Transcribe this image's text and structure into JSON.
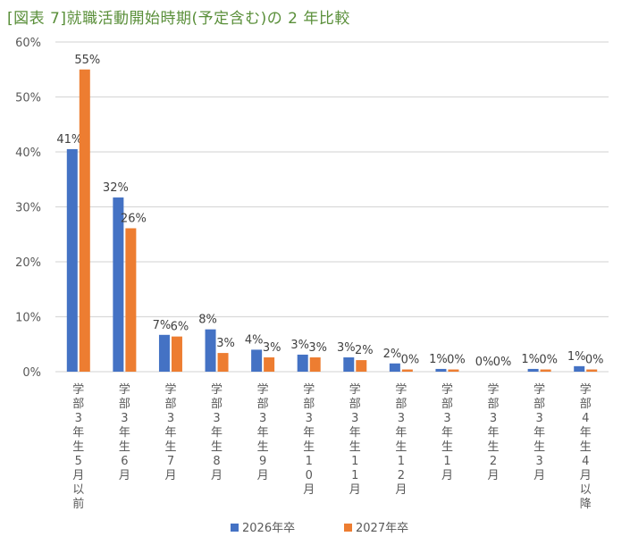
{
  "chart_data": {
    "type": "bar",
    "title": "[図表 7]就職活動開始時期(予定含む)の 2 年比較",
    "categories": [
      "学部3年生5月以前",
      "学部3年生6月",
      "学部3年生7月",
      "学部3年生8月",
      "学部3年生9月",
      "学部3年生10月",
      "学部3年生11月",
      "学部3年生12月",
      "学部3年生1月",
      "学部3年生2月",
      "学部3年生3月",
      "学部4年生4月以降"
    ],
    "series": [
      {
        "name": "2026年卒",
        "color": "#4472c4",
        "values": [
          40.5,
          31.7,
          6.7,
          7.7,
          4.0,
          3.1,
          2.6,
          1.5,
          0.5,
          0,
          0.5,
          1.0
        ],
        "labels": [
          "41%",
          "32%",
          "7%",
          "8%",
          "4%",
          "3%",
          "3%",
          "2%",
          "1%",
          "0%",
          "1%",
          "1%"
        ]
      },
      {
        "name": "2027年卒",
        "color": "#ed7d31",
        "values": [
          55.0,
          26.1,
          6.4,
          3.4,
          2.6,
          2.6,
          2.1,
          0.4,
          0.4,
          0,
          0.4,
          0.4
        ],
        "labels": [
          "55%",
          "26%",
          "6%",
          "3%",
          "3%",
          "3%",
          "2%",
          "0%",
          "0%",
          "0%",
          "0%",
          "0%"
        ]
      }
    ],
    "yticks": [
      "0%",
      "10%",
      "20%",
      "30%",
      "40%",
      "50%",
      "60%"
    ],
    "ylim": [
      0,
      60
    ],
    "grid": true,
    "legend": "bottom"
  }
}
